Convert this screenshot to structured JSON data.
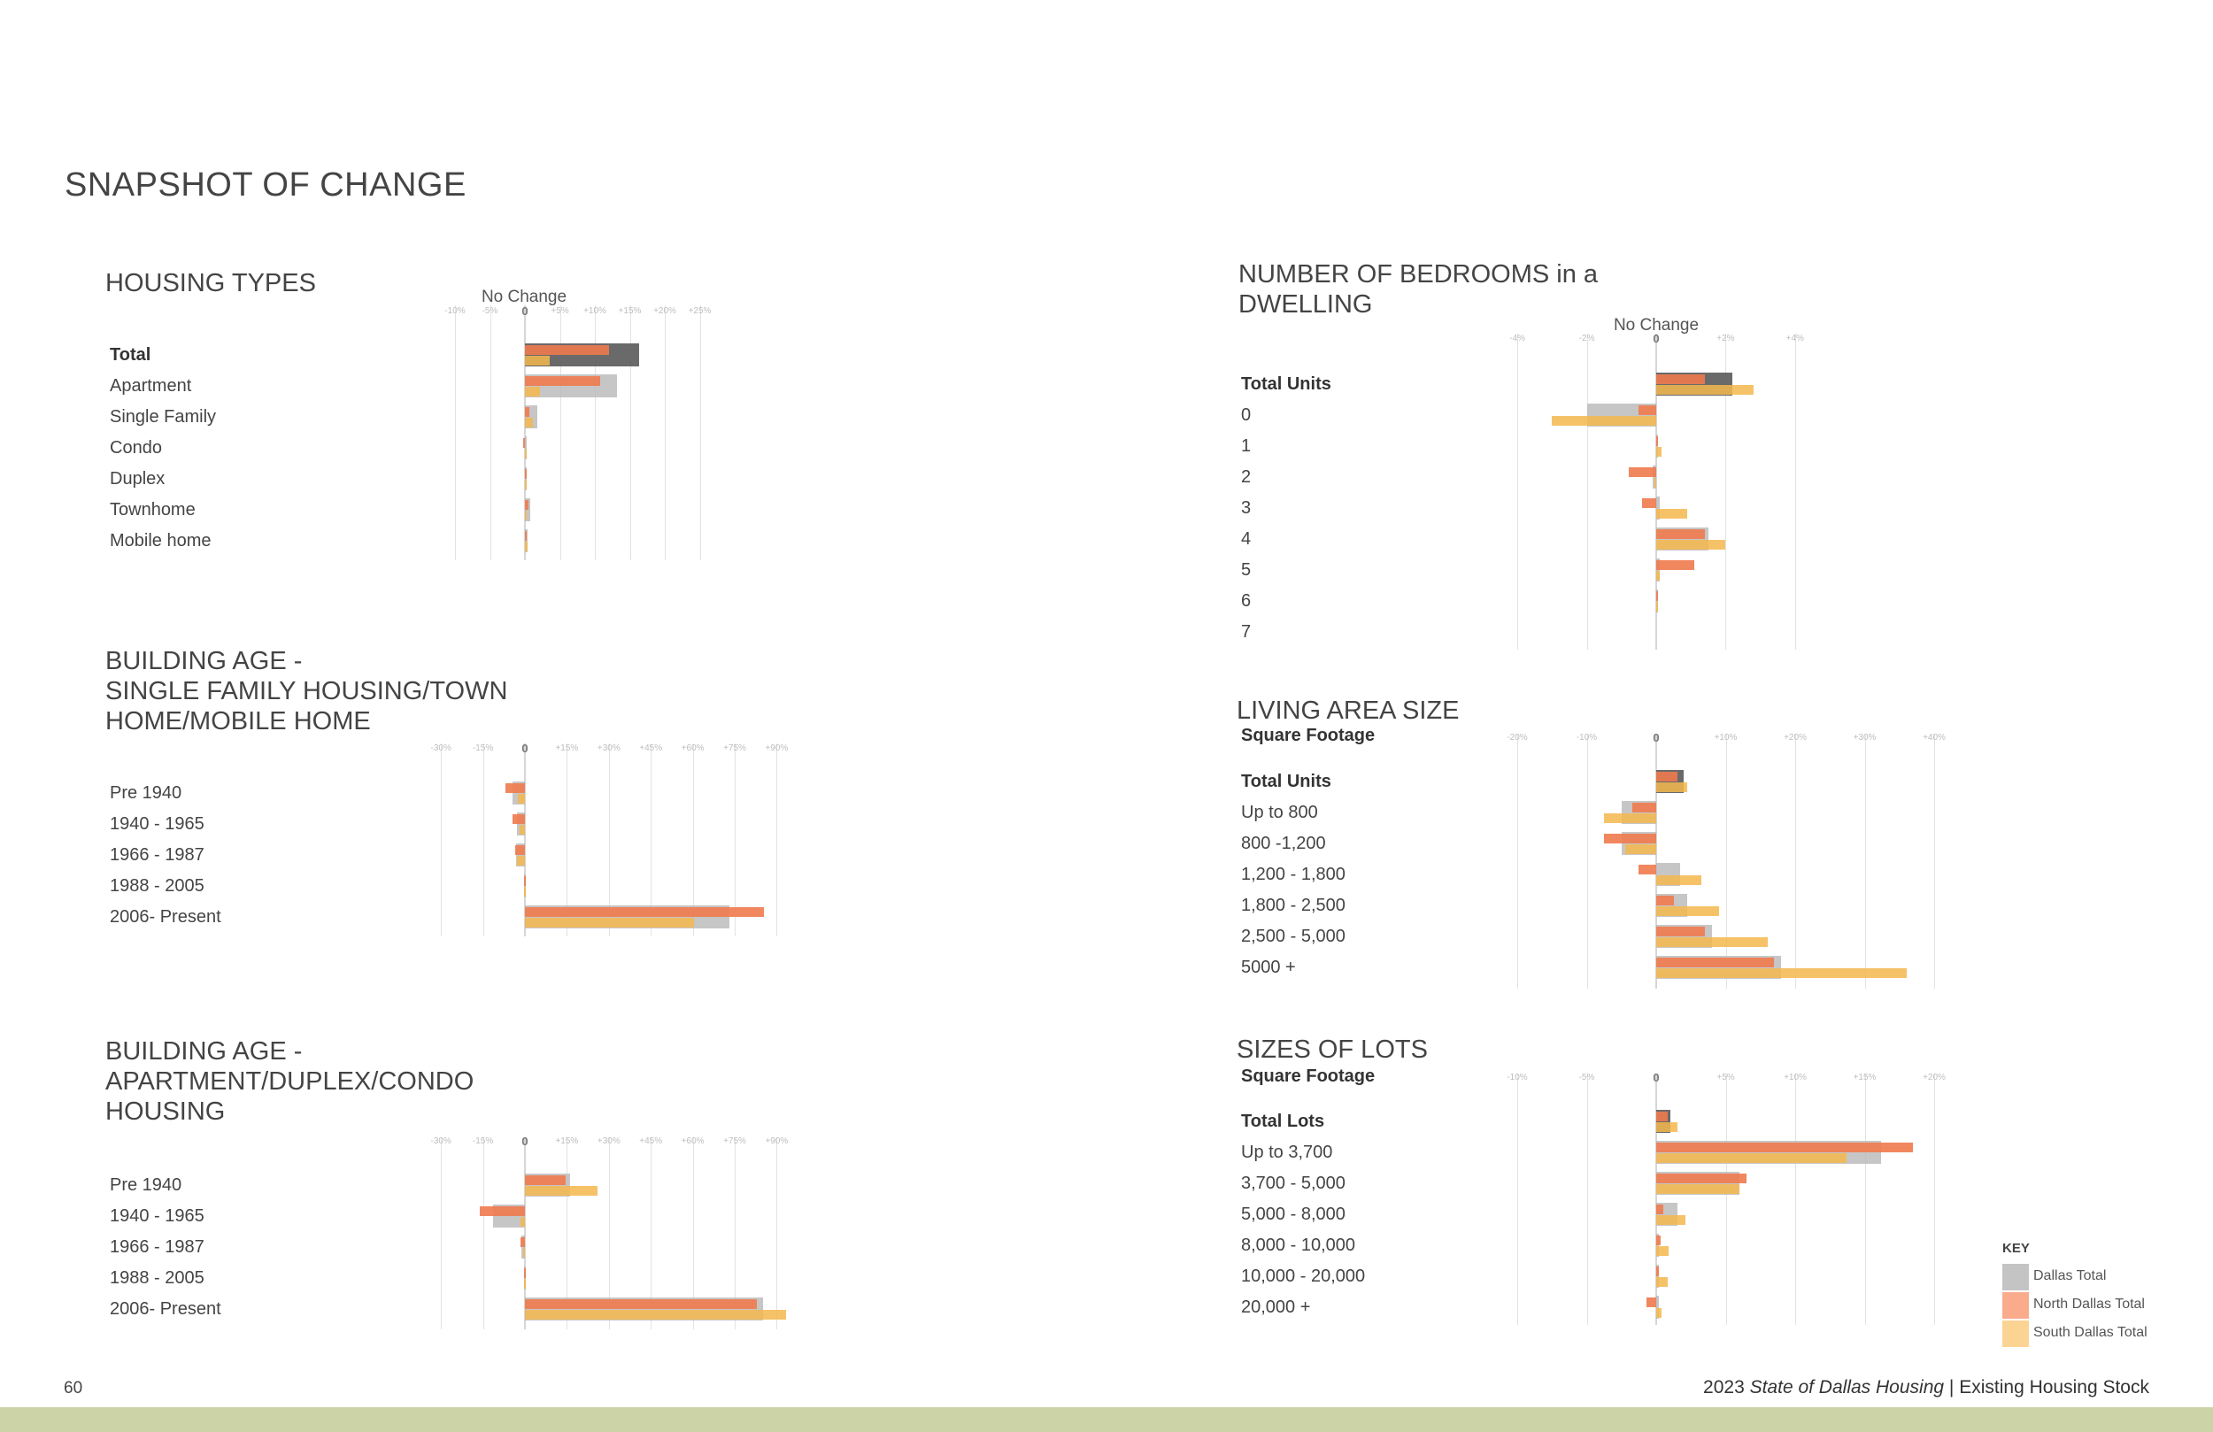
{
  "page": {
    "title": "SNAPSHOT OF CHANGE",
    "page_number": "60",
    "footer": {
      "year": "2023",
      "title_italic": "State of Dallas Housing",
      "separator": "|",
      "section": "Existing Housing Stock"
    }
  },
  "colors": {
    "dallas": "#b8b8b8",
    "dallas_total_row": "#5a5a5a",
    "north": "#ef7a4e",
    "south": "#f5b74d"
  },
  "key": {
    "title": "KEY",
    "items": [
      {
        "label": "Dallas Total",
        "color": "#c4c4c4"
      },
      {
        "label": "North Dallas Total",
        "color": "#f9ab8c"
      },
      {
        "label": "South Dallas Total",
        "color": "#fbd493"
      }
    ]
  },
  "chart_data": [
    {
      "id": "housing_types",
      "type": "bar",
      "orientation": "horizontal",
      "title": "HOUSING TYPES",
      "no_change_label": "No Change",
      "xlim": [
        -10,
        25
      ],
      "ticks": [
        "-10%",
        "-5%",
        "0",
        "+5%",
        "+10%",
        "+15%",
        "+20%",
        "+25%"
      ],
      "tick_values": [
        -10,
        -5,
        0,
        5,
        10,
        15,
        20,
        25
      ],
      "categories": [
        "Total",
        "Apartment",
        "Single Family",
        "Condo",
        "Duplex",
        "Townhome",
        "Mobile home"
      ],
      "series": [
        {
          "name": "Dallas Total",
          "values": [
            16.3,
            13.2,
            1.8,
            0.1,
            0.1,
            0.7,
            0.4
          ]
        },
        {
          "name": "North Dallas Total",
          "values": [
            12.0,
            10.8,
            0.6,
            -0.2,
            0.1,
            0.5,
            0.1
          ]
        },
        {
          "name": "South Dallas Total",
          "values": [
            3.6,
            2.2,
            1.2,
            0.3,
            0.1,
            0.3,
            0.4
          ]
        }
      ]
    },
    {
      "id": "building_age_sf",
      "type": "bar",
      "orientation": "horizontal",
      "title": "BUILDING AGE -\nSINGLE FAMILY HOUSING/TOWN\nHOME/MOBILE HOME",
      "xlim": [
        -30,
        90
      ],
      "ticks": [
        "-30%",
        "-15%",
        "0",
        "+15%",
        "+30%",
        "+45%",
        "+60%",
        "+75%",
        "+90%"
      ],
      "tick_values": [
        -30,
        -15,
        0,
        15,
        30,
        45,
        60,
        75,
        90
      ],
      "categories": [
        "Pre 1940",
        "1940 - 1965",
        "1966 - 1987",
        "1988 - 2005",
        "2006- Present"
      ],
      "series": [
        {
          "name": "Dallas Total",
          "values": [
            -4.5,
            -3.0,
            -3.3,
            -0.2,
            73
          ]
        },
        {
          "name": "North Dallas Total",
          "values": [
            -7.0,
            -4.5,
            -3.5,
            -0.3,
            85.5
          ]
        },
        {
          "name": "South Dallas Total",
          "values": [
            -2.5,
            -2.0,
            -3.0,
            -0.3,
            60.5
          ]
        }
      ]
    },
    {
      "id": "building_age_apt",
      "type": "bar",
      "orientation": "horizontal",
      "title": "BUILDING AGE -\nAPARTMENT/DUPLEX/CONDO\nHOUSING",
      "xlim": [
        -30,
        90
      ],
      "ticks": [
        "-30%",
        "-15%",
        "0",
        "+15%",
        "+30%",
        "+45%",
        "+60%",
        "+75%",
        "+90%"
      ],
      "tick_values": [
        -30,
        -15,
        0,
        15,
        30,
        45,
        60,
        75,
        90
      ],
      "categories": [
        "Pre 1940",
        "1940 - 1965",
        "1966 - 1987",
        "1988 - 2005",
        "2006- Present"
      ],
      "series": [
        {
          "name": "Dallas Total",
          "values": [
            16.2,
            -11.5,
            -1.2,
            -0.2,
            85
          ]
        },
        {
          "name": "North Dallas Total",
          "values": [
            14.5,
            -16.0,
            -1.5,
            -0.3,
            83
          ]
        },
        {
          "name": "South Dallas Total",
          "values": [
            26.0,
            -1.5,
            -0.5,
            -0.2,
            93.5
          ]
        }
      ]
    },
    {
      "id": "bedrooms",
      "type": "bar",
      "orientation": "horizontal",
      "title": "NUMBER OF BEDROOMS in a\nDWELLING",
      "no_change_label": "No Change",
      "xlim": [
        -4,
        4
      ],
      "ticks": [
        "-4%",
        "-2%",
        "0",
        "+2%",
        "+4%"
      ],
      "tick_values": [
        -4,
        -2,
        0,
        2,
        4
      ],
      "categories": [
        "Total Units",
        "0",
        "1",
        "2",
        "3",
        "4",
        "5",
        "6",
        "7"
      ],
      "series": [
        {
          "name": "Dallas Total",
          "values": [
            2.2,
            -2.0,
            0.05,
            -0.1,
            0.1,
            1.5,
            0.1,
            0.05,
            0.0
          ]
        },
        {
          "name": "North Dallas Total",
          "values": [
            1.4,
            -0.5,
            0.05,
            -0.8,
            -0.4,
            1.4,
            1.1,
            0.05,
            0.0
          ]
        },
        {
          "name": "South Dallas Total",
          "values": [
            2.8,
            -3.0,
            0.15,
            -0.05,
            0.9,
            2.0,
            0.1,
            0.05,
            0.0
          ]
        }
      ]
    },
    {
      "id": "living_area",
      "type": "bar",
      "orientation": "horizontal",
      "title": "LIVING AREA SIZE",
      "subheader": "Square Footage",
      "xlim": [
        -20,
        40
      ],
      "ticks": [
        "-20%",
        "-10%",
        "0",
        "+10%",
        "+20%",
        "+30%",
        "+40%"
      ],
      "tick_values": [
        -20,
        -10,
        0,
        10,
        20,
        30,
        40
      ],
      "categories": [
        "Total Units",
        "Up to 800",
        "800 -1,200",
        "1,200 - 1,800",
        "1,800 - 2,500",
        "2,500 - 5,000",
        "5000 +"
      ],
      "series": [
        {
          "name": "Dallas Total",
          "values": [
            4.0,
            -5.0,
            -5.0,
            3.5,
            4.5,
            8.0,
            18.0
          ]
        },
        {
          "name": "North Dallas Total",
          "values": [
            3.0,
            -3.5,
            -7.5,
            -2.5,
            2.5,
            7.0,
            17.0
          ]
        },
        {
          "name": "South Dallas Total",
          "values": [
            4.5,
            -7.5,
            -4.5,
            6.5,
            9.0,
            16.0,
            36.0
          ]
        }
      ]
    },
    {
      "id": "lot_sizes",
      "type": "bar",
      "orientation": "horizontal",
      "title": "SIZES OF LOTS",
      "subheader": "Square Footage",
      "xlim": [
        -10,
        20
      ],
      "ticks": [
        "-10%",
        "-5%",
        "0",
        "+5%",
        "+10%",
        "+15%",
        "+20%"
      ],
      "tick_values": [
        -10,
        -5,
        0,
        5,
        10,
        15,
        20
      ],
      "categories": [
        "Total Lots",
        "Up to 3,700",
        "3,700 - 5,000",
        "5,000 - 8,000",
        "8,000 - 10,000",
        "10,000 - 20,000",
        "20,000 +"
      ],
      "series": [
        {
          "name": "Dallas Total",
          "values": [
            1.0,
            16.2,
            6.0,
            1.5,
            0.2,
            0.2,
            0.2
          ]
        },
        {
          "name": "North Dallas Total",
          "values": [
            0.8,
            18.5,
            6.5,
            0.5,
            0.3,
            0.2,
            -0.7
          ]
        },
        {
          "name": "South Dallas Total",
          "values": [
            1.5,
            13.7,
            6.0,
            2.1,
            0.9,
            0.8,
            0.4
          ]
        }
      ]
    }
  ]
}
